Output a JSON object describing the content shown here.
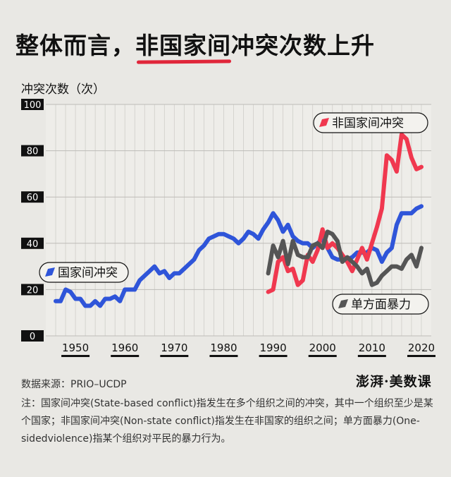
{
  "title": {
    "prefix": "整体而言，",
    "highlight": "非国家间",
    "suffix": "冲突次数上升"
  },
  "footer": {
    "source": "数据来源：PRIO–UCDP",
    "logo": "澎湃·美数课",
    "note": "注：国家间冲突(State-based conflict)指发生在多个组织之间的冲突，其中一个组织至少是某个国家；非国家间冲突(Non-state conflict)指发生在非国家的组织之间；单方面暴力(One-sidedviolence)指某个组织对平民的暴力行为。"
  },
  "colors": {
    "state": "#2f55d9",
    "nonstate": "#f0384f",
    "onesided": "#555555",
    "highlight": "#e0263a"
  },
  "chart_data": {
    "type": "line",
    "ylabel": "冲突次数（次）",
    "xlabel": "",
    "ylim": [
      0,
      100
    ],
    "xlim": [
      1944,
      2022
    ],
    "yticks": [
      0,
      20,
      40,
      60,
      80,
      100
    ],
    "xticks": [
      1950,
      1960,
      1970,
      1980,
      1990,
      2000,
      2010,
      2020
    ],
    "series": [
      {
        "name": "国家间冲突",
        "color": "#2f55d9",
        "x": [
          1946,
          1947,
          1948,
          1949,
          1950,
          1951,
          1952,
          1953,
          1954,
          1955,
          1956,
          1957,
          1958,
          1959,
          1960,
          1961,
          1962,
          1963,
          1964,
          1965,
          1966,
          1967,
          1968,
          1969,
          1970,
          1971,
          1972,
          1973,
          1974,
          1975,
          1976,
          1977,
          1978,
          1979,
          1980,
          1981,
          1982,
          1983,
          1984,
          1985,
          1986,
          1987,
          1988,
          1989,
          1990,
          1991,
          1992,
          1993,
          1994,
          1995,
          1996,
          1997,
          1998,
          1999,
          2000,
          2001,
          2002,
          2003,
          2004,
          2005,
          2006,
          2007,
          2008,
          2009,
          2010,
          2011,
          2012,
          2013,
          2014,
          2015,
          2016,
          2017,
          2018,
          2019,
          2020
        ],
        "values": [
          15,
          15,
          20,
          19,
          16,
          16,
          13,
          13,
          15,
          13,
          16,
          16,
          17,
          15,
          20,
          20,
          20,
          24,
          26,
          28,
          30,
          27,
          28,
          25,
          27,
          27,
          29,
          31,
          33,
          37,
          39,
          42,
          43,
          44,
          44,
          43,
          42,
          40,
          42,
          45,
          44,
          42,
          46,
          49,
          53,
          50,
          45,
          48,
          43,
          41,
          40,
          40,
          38,
          40,
          42,
          38,
          34,
          33,
          33,
          33,
          34,
          36,
          36,
          36,
          38,
          37,
          32,
          36,
          38,
          48,
          53,
          53,
          53,
          55,
          56
        ]
      },
      {
        "name": "非国家间冲突",
        "color": "#f0384f",
        "x": [
          1989,
          1990,
          1991,
          1992,
          1993,
          1994,
          1995,
          1996,
          1997,
          1998,
          1999,
          2000,
          2001,
          2002,
          2003,
          2004,
          2005,
          2006,
          2007,
          2008,
          2009,
          2010,
          2011,
          2012,
          2013,
          2014,
          2015,
          2016,
          2017,
          2018,
          2019,
          2020
        ],
        "values": [
          19,
          20,
          32,
          34,
          28,
          29,
          22,
          24,
          35,
          32,
          37,
          46,
          38,
          40,
          38,
          35,
          32,
          28,
          33,
          38,
          33,
          40,
          47,
          55,
          78,
          76,
          71,
          87,
          85,
          77,
          72,
          73
        ]
      },
      {
        "name": "单方面暴力",
        "color": "#555555",
        "x": [
          1989,
          1990,
          1991,
          1992,
          1993,
          1994,
          1995,
          1996,
          1997,
          1998,
          1999,
          2000,
          2001,
          2002,
          2003,
          2004,
          2005,
          2006,
          2007,
          2008,
          2009,
          2010,
          2011,
          2012,
          2013,
          2014,
          2015,
          2016,
          2017,
          2018,
          2019,
          2020
        ],
        "values": [
          27,
          39,
          34,
          41,
          31,
          41,
          35,
          34,
          34,
          39,
          40,
          38,
          45,
          44,
          41,
          32,
          34,
          32,
          30,
          27,
          29,
          22,
          23,
          26,
          28,
          30,
          30,
          29,
          33,
          35,
          30,
          38
        ]
      }
    ],
    "legend_labels": [
      "国家间冲突",
      "非国家间冲突",
      "单方面暴力"
    ]
  }
}
